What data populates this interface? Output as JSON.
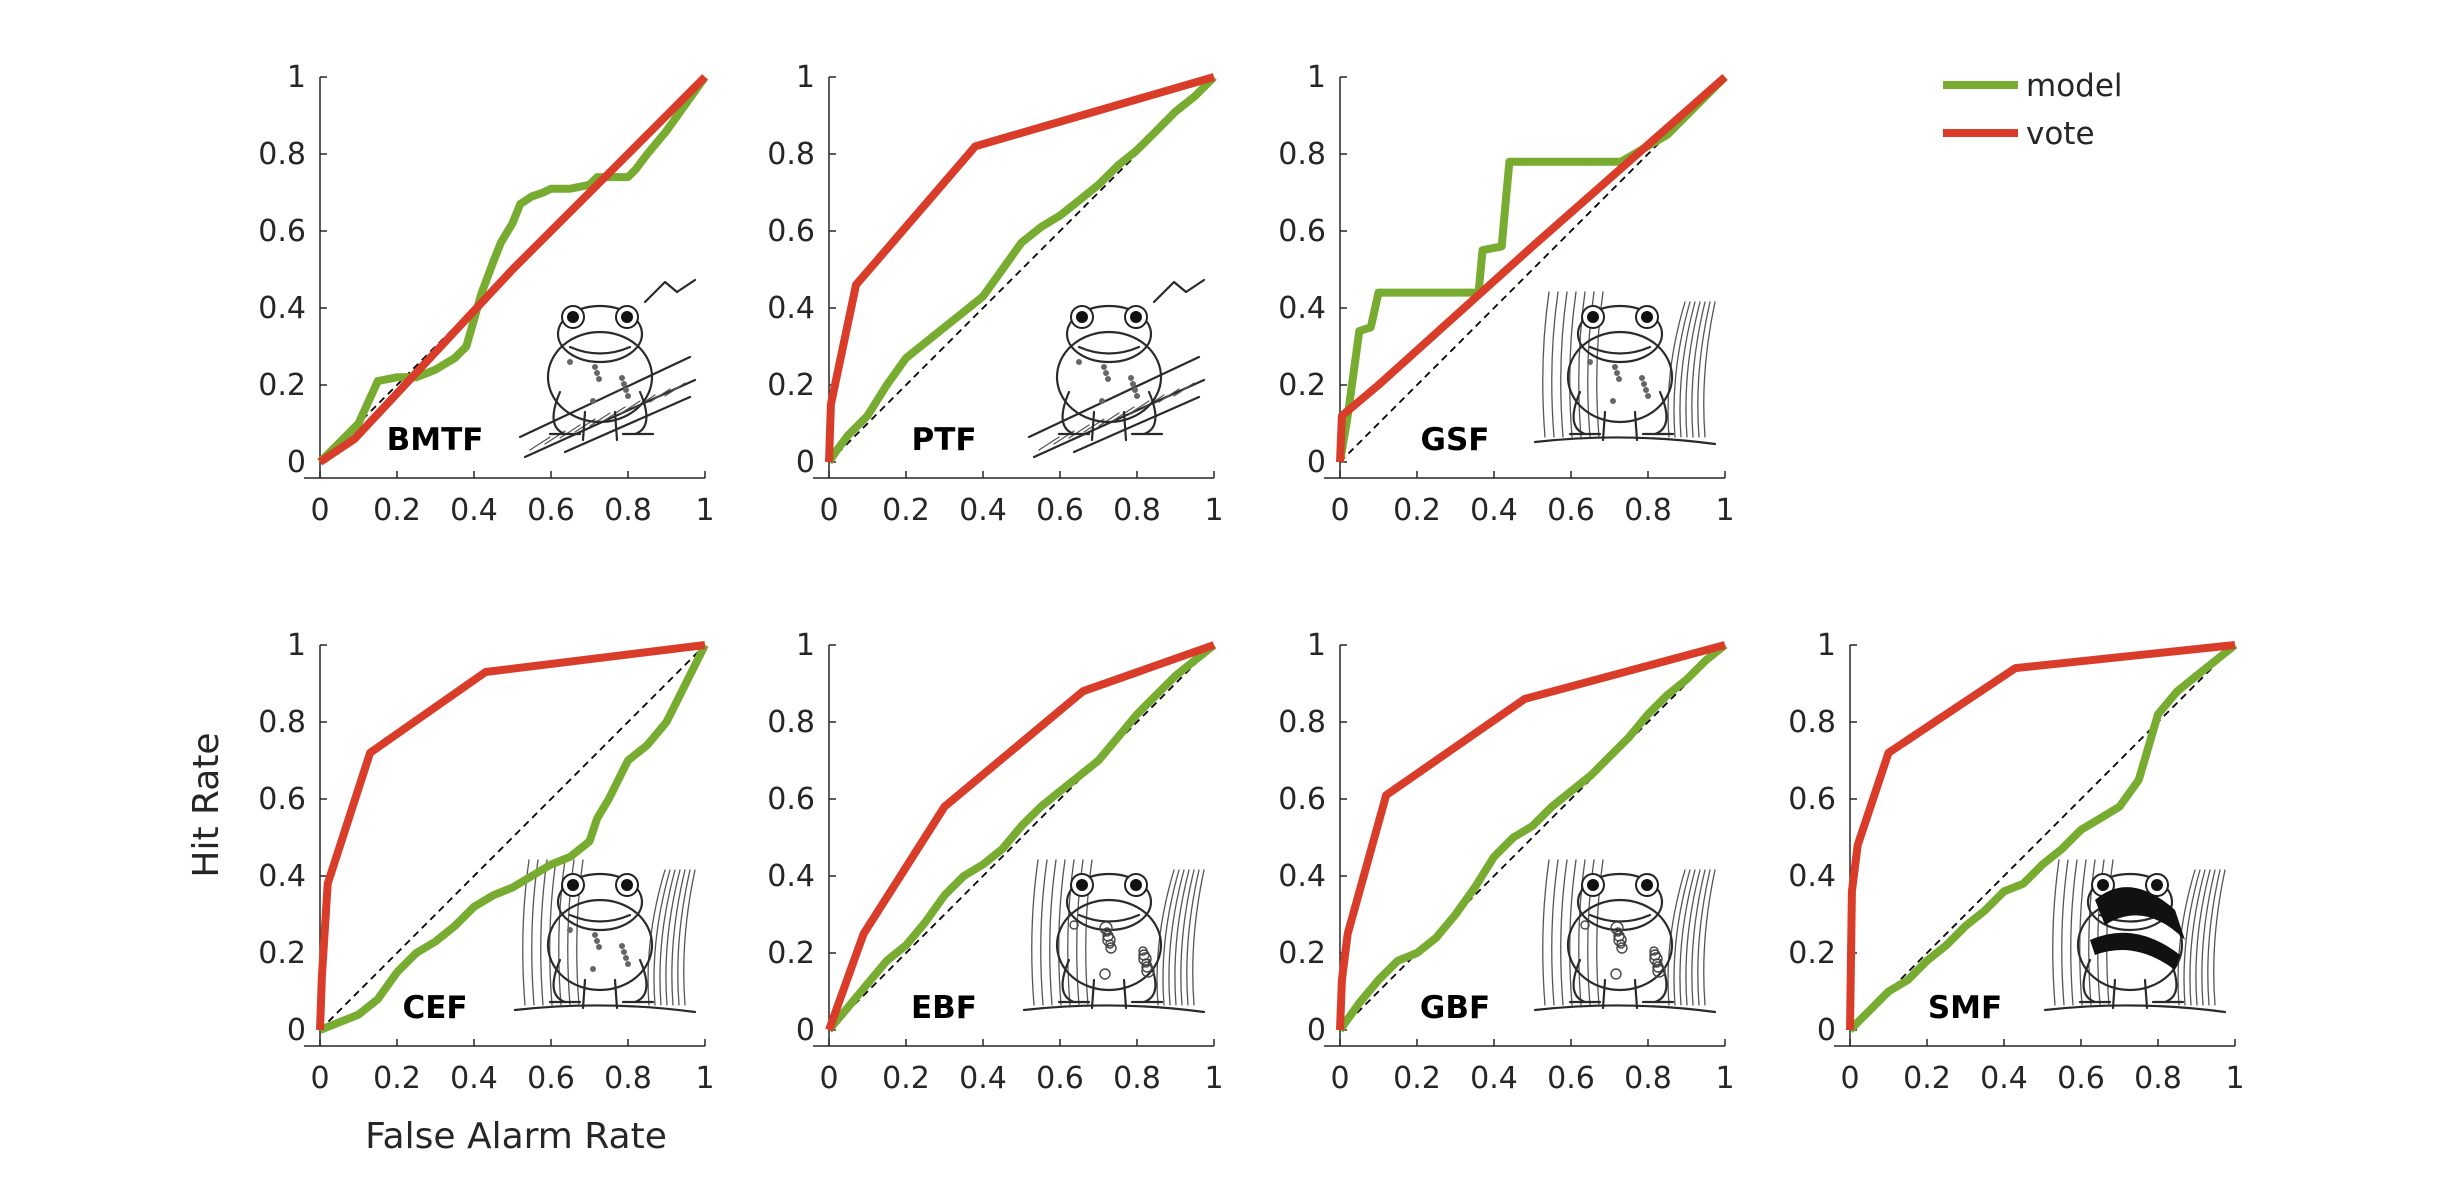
{
  "chart_data": {
    "type": "line",
    "xlabel": "False Alarm Rate",
    "ylabel": "Hit Rate",
    "xlim": [
      0,
      1
    ],
    "ylim": [
      0,
      1
    ],
    "xticks": [
      "0",
      "0.2",
      "0.4",
      "0.6",
      "0.8",
      "1"
    ],
    "yticks": [
      "0",
      "0.2",
      "0.4",
      "0.6",
      "0.8",
      "1"
    ],
    "chance_line": true,
    "grid": false,
    "legend": {
      "placement": "top-right",
      "entries": [
        {
          "name": "model",
          "color": "#77ac30"
        },
        {
          "name": "vote",
          "color": "#d93d2a"
        }
      ]
    },
    "panels": [
      {
        "label": "BMTF",
        "image": "tree-frog-on-branch-illustration",
        "series": [
          {
            "name": "model",
            "x": [
              0,
              0.05,
              0.1,
              0.15,
              0.2,
              0.25,
              0.3,
              0.35,
              0.38,
              0.4,
              0.42,
              0.45,
              0.47,
              0.5,
              0.52,
              0.55,
              0.58,
              0.6,
              0.65,
              0.7,
              0.72,
              0.75,
              0.8,
              0.82,
              0.85,
              0.9,
              0.95,
              1
            ],
            "y": [
              0,
              0.05,
              0.1,
              0.21,
              0.22,
              0.22,
              0.24,
              0.27,
              0.3,
              0.37,
              0.44,
              0.52,
              0.57,
              0.62,
              0.67,
              0.69,
              0.7,
              0.71,
              0.71,
              0.72,
              0.74,
              0.74,
              0.74,
              0.76,
              0.8,
              0.86,
              0.93,
              1
            ]
          },
          {
            "name": "vote",
            "x": [
              0,
              0.09,
              0.5,
              0.75,
              0.89,
              1
            ],
            "y": [
              0,
              0.06,
              0.5,
              0.75,
              0.89,
              1
            ]
          }
        ]
      },
      {
        "label": "PTF",
        "image": "tree-frog-on-branch-illustration",
        "series": [
          {
            "name": "model",
            "x": [
              0,
              0.02,
              0.05,
              0.1,
              0.15,
              0.2,
              0.25,
              0.3,
              0.35,
              0.4,
              0.45,
              0.5,
              0.55,
              0.6,
              0.65,
              0.7,
              0.75,
              0.8,
              0.85,
              0.9,
              0.95,
              1
            ],
            "y": [
              0,
              0.03,
              0.07,
              0.12,
              0.2,
              0.27,
              0.31,
              0.35,
              0.39,
              0.43,
              0.5,
              0.57,
              0.61,
              0.64,
              0.68,
              0.72,
              0.77,
              0.81,
              0.86,
              0.91,
              0.95,
              1
            ]
          },
          {
            "name": "vote",
            "x": [
              0,
              0.005,
              0.07,
              0.38,
              1
            ],
            "y": [
              0,
              0.15,
              0.46,
              0.82,
              1
            ]
          }
        ]
      },
      {
        "label": "GSF",
        "image": "frog-among-ferns-illustration",
        "series": [
          {
            "name": "model",
            "x": [
              0,
              0.02,
              0.05,
              0.08,
              0.1,
              0.36,
              0.37,
              0.42,
              0.43,
              0.44,
              0.73,
              0.85,
              1
            ],
            "y": [
              0,
              0.12,
              0.34,
              0.35,
              0.44,
              0.44,
              0.55,
              0.56,
              0.67,
              0.78,
              0.78,
              0.85,
              1
            ]
          },
          {
            "name": "vote",
            "x": [
              0,
              0.005,
              0.1,
              0.5,
              1
            ],
            "y": [
              0,
              0.12,
              0.2,
              0.56,
              1
            ]
          }
        ]
      },
      {
        "label": "CEF",
        "image": "frog-in-grass-illustration",
        "series": [
          {
            "name": "model",
            "x": [
              0,
              0.05,
              0.1,
              0.15,
              0.2,
              0.25,
              0.3,
              0.35,
              0.4,
              0.45,
              0.5,
              0.55,
              0.6,
              0.65,
              0.7,
              0.72,
              0.75,
              0.78,
              0.8,
              0.85,
              0.9,
              0.95,
              1
            ],
            "y": [
              0,
              0.02,
              0.04,
              0.08,
              0.15,
              0.2,
              0.23,
              0.27,
              0.32,
              0.35,
              0.37,
              0.4,
              0.43,
              0.45,
              0.49,
              0.55,
              0.6,
              0.66,
              0.7,
              0.74,
              0.8,
              0.9,
              1
            ]
          },
          {
            "name": "vote",
            "x": [
              0,
              0.005,
              0.02,
              0.13,
              0.43,
              1
            ],
            "y": [
              0,
              0.14,
              0.38,
              0.72,
              0.93,
              1
            ]
          }
        ]
      },
      {
        "label": "EBF",
        "image": "bullfrog-illustration",
        "series": [
          {
            "name": "model",
            "x": [
              0,
              0.05,
              0.1,
              0.15,
              0.2,
              0.25,
              0.3,
              0.35,
              0.4,
              0.45,
              0.5,
              0.55,
              0.6,
              0.65,
              0.7,
              0.75,
              0.8,
              0.85,
              0.9,
              0.95,
              1
            ],
            "y": [
              0,
              0.06,
              0.12,
              0.18,
              0.22,
              0.28,
              0.35,
              0.4,
              0.43,
              0.47,
              0.53,
              0.58,
              0.62,
              0.66,
              0.7,
              0.76,
              0.82,
              0.87,
              0.92,
              0.96,
              1
            ]
          },
          {
            "name": "vote",
            "x": [
              0,
              0.09,
              0.3,
              0.66,
              1
            ],
            "y": [
              0,
              0.25,
              0.58,
              0.88,
              1
            ]
          }
        ]
      },
      {
        "label": "GBF",
        "image": "toad-illustration",
        "series": [
          {
            "name": "model",
            "x": [
              0,
              0.05,
              0.1,
              0.15,
              0.2,
              0.25,
              0.3,
              0.35,
              0.4,
              0.45,
              0.5,
              0.55,
              0.6,
              0.65,
              0.7,
              0.75,
              0.8,
              0.85,
              0.9,
              0.95,
              1
            ],
            "y": [
              0,
              0.07,
              0.13,
              0.18,
              0.2,
              0.24,
              0.3,
              0.37,
              0.45,
              0.5,
              0.53,
              0.58,
              0.62,
              0.66,
              0.71,
              0.76,
              0.82,
              0.87,
              0.91,
              0.96,
              1
            ]
          },
          {
            "name": "vote",
            "x": [
              0,
              0.005,
              0.02,
              0.12,
              0.48,
              1
            ],
            "y": [
              0,
              0.13,
              0.25,
              0.61,
              0.86,
              1
            ]
          }
        ]
      },
      {
        "label": "SMF",
        "image": "striped-frog-illustration",
        "series": [
          {
            "name": "model",
            "x": [
              0,
              0.05,
              0.1,
              0.15,
              0.2,
              0.25,
              0.3,
              0.35,
              0.4,
              0.45,
              0.5,
              0.55,
              0.6,
              0.65,
              0.7,
              0.75,
              0.8,
              0.85,
              0.9,
              0.95,
              1
            ],
            "y": [
              0,
              0.05,
              0.1,
              0.13,
              0.18,
              0.22,
              0.27,
              0.31,
              0.36,
              0.38,
              0.43,
              0.47,
              0.52,
              0.55,
              0.58,
              0.65,
              0.82,
              0.88,
              0.92,
              0.96,
              1
            ]
          },
          {
            "name": "vote",
            "x": [
              0,
              0.005,
              0.02,
              0.1,
              0.43,
              1
            ],
            "y": [
              0,
              0.36,
              0.48,
              0.72,
              0.94,
              1
            ]
          }
        ]
      }
    ]
  }
}
